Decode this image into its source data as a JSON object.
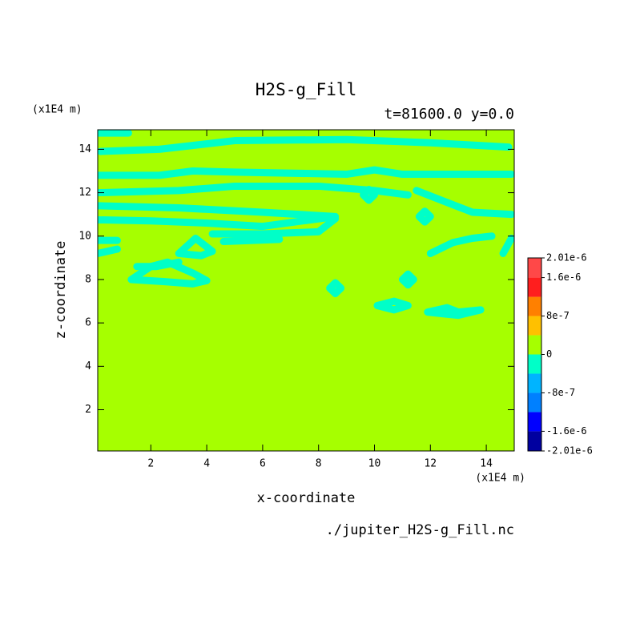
{
  "chart_data": {
    "type": "contour",
    "title": "H2S-g_Fill",
    "subtitle": "t=81600.0 y=0.0",
    "x_label": "x-coordinate",
    "y_label": "z-coordinate",
    "x_unit": "(x1E4 m)",
    "y_unit": "(x1E4 m)",
    "source": "./jupiter_H2S-g_Fill.nc",
    "xlim": [
      0.1,
      15
    ],
    "ylim": [
      0.1,
      14.9
    ],
    "xticks": [
      2,
      4,
      6,
      8,
      10,
      12,
      14
    ],
    "yticks": [
      2,
      4,
      6,
      8,
      10,
      12,
      14
    ],
    "colorbar": {
      "levels": [
        -2.01e-06,
        -1.6e-06,
        -1.2e-06,
        -8e-07,
        -4e-07,
        0,
        4e-07,
        8e-07,
        1.2e-06,
        1.6e-06,
        2.01e-06
      ],
      "colors": [
        "#0000a0",
        "#0000ff",
        "#0080ff",
        "#00b4ff",
        "#00ffc8",
        "#a6ff00",
        "#ffc000",
        "#ff8000",
        "#ff1e1e",
        "#ff4848"
      ],
      "ticks": [
        {
          "value": 2.01e-06,
          "label": "2.01e-6"
        },
        {
          "value": 1.6e-06,
          "label": "1.6e-6"
        },
        {
          "value": 8e-07,
          "label": "8e-7"
        },
        {
          "value": 0,
          "label": "0"
        },
        {
          "value": -8e-07,
          "label": "-8e-7"
        },
        {
          "value": -1.6e-06,
          "label": "-1.6e-6"
        },
        {
          "value": -2.01e-06,
          "label": "-2.01e-6"
        }
      ]
    },
    "features": [
      {
        "x": [
          0.1,
          1.2
        ],
        "y": [
          14.75,
          14.75
        ]
      },
      {
        "x": [
          0.2,
          2.3,
          5,
          9,
          12,
          14.8
        ],
        "y": [
          13.9,
          14.0,
          14.4,
          14.45,
          14.3,
          14.1
        ]
      },
      {
        "x": [
          0.1,
          2.3,
          3.5,
          5,
          9,
          10,
          11,
          14.9
        ],
        "y": [
          12.8,
          12.8,
          13.0,
          12.95,
          12.85,
          13.05,
          12.85,
          12.85
        ]
      },
      {
        "x": [
          0.1,
          3,
          5,
          8,
          10,
          11.2
        ],
        "y": [
          12.0,
          12.1,
          12.3,
          12.3,
          12.1,
          11.9
        ]
      },
      {
        "x": [
          11.5,
          12.5,
          13.5,
          14.9
        ],
        "y": [
          12.1,
          11.6,
          11.1,
          11.0
        ]
      },
      {
        "x": [
          0.1,
          3,
          6,
          8.6
        ],
        "y": [
          11.4,
          11.3,
          11.1,
          10.9
        ]
      },
      {
        "x": [
          0.1,
          2,
          4,
          6,
          8.3
        ],
        "y": [
          10.75,
          10.7,
          10.6,
          10.45,
          10.85
        ]
      },
      {
        "x": [
          4.2,
          6,
          8,
          8.6
        ],
        "y": [
          10.1,
          10.1,
          10.2,
          10.8
        ]
      },
      {
        "x": [
          0.1,
          0.8
        ],
        "y": [
          9.8,
          9.8
        ]
      },
      {
        "x": [
          0.1,
          0.8
        ],
        "y": [
          9.2,
          9.4
        ]
      },
      {
        "x": [
          3.0,
          3.6,
          4.2,
          3.8,
          3.0
        ],
        "y": [
          9.2,
          9.9,
          9.3,
          9.1,
          9.2
        ]
      },
      {
        "x": [
          4.6,
          6.6
        ],
        "y": [
          9.75,
          9.85
        ]
      },
      {
        "x": [
          1.3,
          2,
          2.6,
          3.5,
          4,
          3.5,
          2.5,
          1.3
        ],
        "y": [
          8.0,
          8.6,
          8.8,
          8.3,
          7.95,
          7.8,
          7.9,
          8.0
        ]
      },
      {
        "x": [
          1.5,
          2.2,
          3
        ],
        "y": [
          8.6,
          8.6,
          8.8
        ]
      },
      {
        "x": [
          8.4,
          8.6,
          8.8,
          8.6,
          8.4
        ],
        "y": [
          7.6,
          7.85,
          7.6,
          7.35,
          7.6
        ]
      },
      {
        "x": [
          11.0,
          11.2,
          11.4,
          11.2,
          11.0
        ],
        "y": [
          8.0,
          8.25,
          8.0,
          7.75,
          8.0
        ]
      },
      {
        "x": [
          10.1,
          10.7,
          11.2,
          10.7,
          10.1
        ],
        "y": [
          6.8,
          7.0,
          6.8,
          6.6,
          6.8
        ]
      },
      {
        "x": [
          11.9,
          12.6,
          13,
          13.8,
          13,
          12.6,
          11.9
        ],
        "y": [
          6.5,
          6.7,
          6.5,
          6.6,
          6.35,
          6.4,
          6.5
        ]
      },
      {
        "x": [
          12,
          12.8,
          13.5,
          14.2
        ],
        "y": [
          9.2,
          9.7,
          9.9,
          10.0
        ]
      },
      {
        "x": [
          14.6,
          14.9
        ],
        "y": [
          9.2,
          9.9
        ]
      },
      {
        "x": [
          11.6,
          11.8,
          12.0,
          11.8,
          11.6
        ],
        "y": [
          10.9,
          11.15,
          10.9,
          10.65,
          10.9
        ]
      },
      {
        "x": [
          9.6,
          9.8,
          10.0,
          9.8,
          9.6
        ],
        "y": [
          11.9,
          12.15,
          11.9,
          11.65,
          11.9
        ]
      }
    ]
  }
}
